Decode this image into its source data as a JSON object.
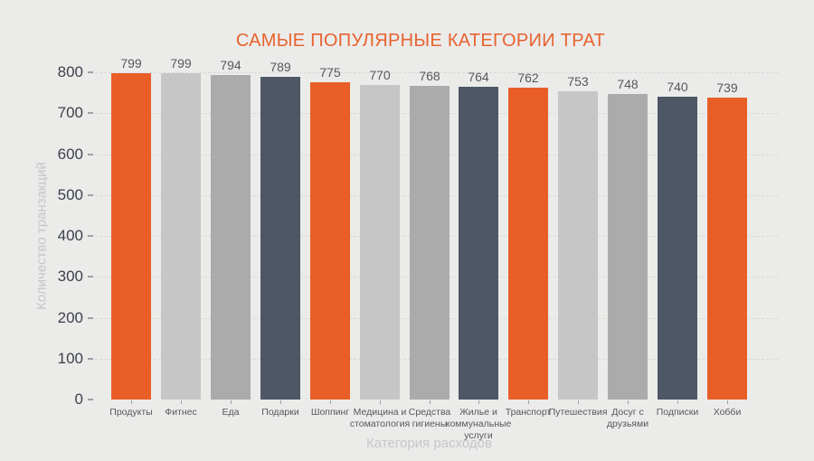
{
  "chart_data": {
    "type": "bar",
    "title": "САМЫЕ ПОПУЛЯРНЫЕ КАТЕГОРИИ ТРАТ",
    "xlabel": "Категория расходов",
    "ylabel": "Количество транзакций",
    "ylim": [
      0,
      800
    ],
    "yticks": [
      0,
      100,
      200,
      300,
      400,
      500,
      600,
      700,
      800
    ],
    "grid": "horizontal-dashed",
    "legend_position": "none",
    "value_labels_shown": true,
    "categories": [
      "Продукты",
      "Фитнес",
      "Еда",
      "Подарки",
      "Шоппинг",
      "Медицина и стоматология",
      "Средства гигиены",
      "Жилье и коммунальные услуги",
      "Транспорт",
      "Путешествия",
      "Досуг с друзьями",
      "Подписки",
      "Хобби"
    ],
    "display_labels": [
      "Продукты",
      "Фитнес",
      "Еда",
      "Подарки",
      "Шоппинг",
      "Медицина и\nстоматология",
      "Средства\nгигиены",
      "Жилье и\nкоммунальные\nуслуги",
      "Транспорт",
      "Путешествия",
      "Досуг с\nдрузьями",
      "Подписки",
      "Хобби"
    ],
    "values": [
      799,
      799,
      794,
      789,
      775,
      770,
      768,
      764,
      762,
      753,
      748,
      740,
      739
    ],
    "bar_colors": [
      "#E85E26",
      "#C6C6C6",
      "#ABABAB",
      "#4D5766",
      "#E85E26",
      "#C6C6C6",
      "#ABABAB",
      "#4D5766",
      "#E85E26",
      "#C6C6C6",
      "#ABABAB",
      "#4D5766",
      "#E85E26"
    ],
    "color_cycle": [
      "#E85E26",
      "#C6C6C6",
      "#ABABAB",
      "#4D5766"
    ]
  },
  "colors": {
    "background": "#EBEBEA",
    "title": "#E7632D",
    "gridline": "#D8D8D5",
    "tick_label": "#3C414B",
    "value_label": "#55585D",
    "category_label": "#55585D",
    "axis_title": "#C4C6C8",
    "tick_mark": "#9BA0A6"
  }
}
